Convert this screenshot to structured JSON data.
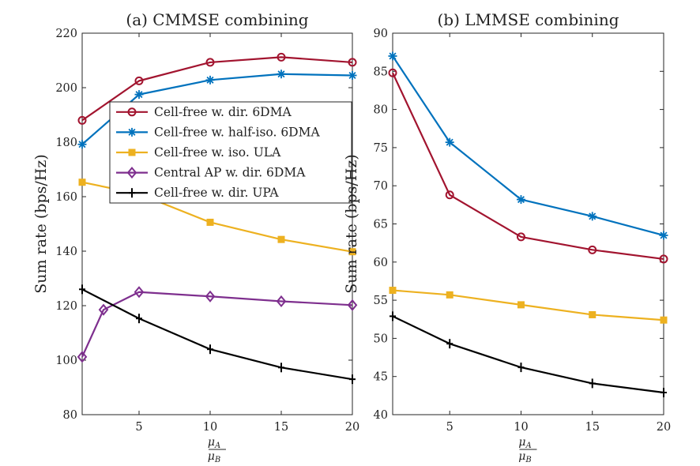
{
  "chart_data": [
    {
      "type": "line",
      "title": "(a) CMMSE combining",
      "xlabel_num": "μ",
      "xlabel_num_sub": "A",
      "xlabel_den": "μ",
      "xlabel_den_sub": "B",
      "ylabel": "Sum rate (bps/Hz)",
      "xlim": [
        1,
        20
      ],
      "ylim": [
        80,
        220
      ],
      "xticks": [
        5,
        10,
        15,
        20
      ],
      "yticks": [
        80,
        100,
        120,
        140,
        160,
        180,
        200,
        220
      ],
      "grid": false,
      "legend_position": "top-left",
      "series": [
        {
          "name": "Cell-free w. dir. 6DMA",
          "color": "#A2142F",
          "marker": "circle",
          "x": [
            1,
            5,
            10,
            15,
            20
          ],
          "y": [
            188,
            202.5,
            209.3,
            211.2,
            209.3
          ]
        },
        {
          "name": "Cell-free w. half-iso. 6DMA",
          "color": "#0072BD",
          "marker": "asterisk",
          "x": [
            1,
            5,
            10,
            15,
            20
          ],
          "y": [
            179.2,
            197.5,
            202.8,
            205,
            204.5
          ]
        },
        {
          "name": "Cell-free w. iso. ULA",
          "color": "#EDB120",
          "marker": "square",
          "x": [
            1,
            5,
            10,
            15,
            20
          ],
          "y": [
            165.3,
            161,
            150.6,
            144.3,
            139.8
          ]
        },
        {
          "name": "Central AP w. dir. 6DMA",
          "color": "#7E2F8E",
          "marker": "diamond",
          "x": [
            1,
            2.5,
            5,
            10,
            15,
            20
          ],
          "y": [
            101.2,
            118.5,
            125,
            123.4,
            121.6,
            120.2
          ]
        },
        {
          "name": "Cell-free w. dir. UPA",
          "color": "#000000",
          "marker": "plus",
          "x": [
            1,
            5,
            10,
            15,
            20
          ],
          "y": [
            126,
            115.3,
            104,
            97.3,
            93
          ]
        }
      ]
    },
    {
      "type": "line",
      "title": "(b) LMMSE combining",
      "xlabel_num": "μ",
      "xlabel_num_sub": "A",
      "xlabel_den": "μ",
      "xlabel_den_sub": "B",
      "ylabel": "Sum rate (bps/Hz)",
      "xlim": [
        1,
        20
      ],
      "ylim": [
        40,
        90
      ],
      "xticks": [
        5,
        10,
        15,
        20
      ],
      "yticks": [
        40,
        45,
        50,
        55,
        60,
        65,
        70,
        75,
        80,
        85,
        90
      ],
      "grid": false,
      "series": [
        {
          "name": "Cell-free w. dir. 6DMA",
          "color": "#A2142F",
          "marker": "circle",
          "x": [
            1,
            5,
            10,
            15,
            20
          ],
          "y": [
            84.8,
            68.8,
            63.3,
            61.6,
            60.4
          ]
        },
        {
          "name": "Cell-free w. half-iso. 6DMA",
          "color": "#0072BD",
          "marker": "asterisk",
          "x": [
            1,
            5,
            10,
            15,
            20
          ],
          "y": [
            87,
            75.7,
            68.2,
            66,
            63.5
          ]
        },
        {
          "name": "Cell-free w. iso. ULA",
          "color": "#EDB120",
          "marker": "square",
          "x": [
            1,
            5,
            10,
            15,
            20
          ],
          "y": [
            56.3,
            55.7,
            54.4,
            53.1,
            52.4
          ]
        },
        {
          "name": "Cell-free w. dir. UPA",
          "color": "#000000",
          "marker": "plus",
          "x": [
            1,
            5,
            10,
            15,
            20
          ],
          "y": [
            52.9,
            49.3,
            46.2,
            44.1,
            42.9
          ]
        }
      ]
    }
  ]
}
